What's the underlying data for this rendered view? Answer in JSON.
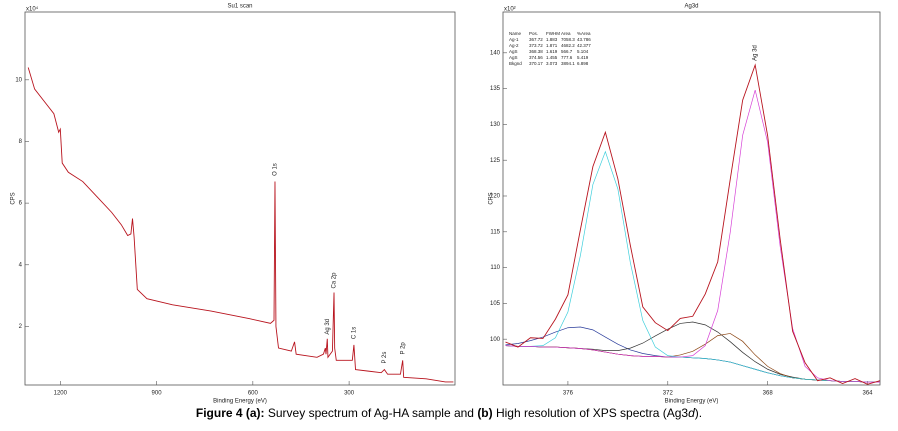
{
  "chart_data": [
    {
      "type": "line",
      "title": "Su1 scan",
      "x_label": "Binding Energy (eV)",
      "y_label": "CPS",
      "y_multiplier": "x10⁴",
      "x": [
        1300,
        1280,
        1250,
        1220,
        1205,
        1200,
        1194,
        1175,
        1130,
        1085,
        1040,
        1010,
        990,
        980,
        975,
        970,
        960,
        930,
        850,
        730,
        610,
        545,
        534,
        531,
        528,
        520,
        480,
        470,
        465,
        400,
        380,
        374,
        372,
        368,
        366,
        352,
        347,
        345,
        340,
        290,
        285,
        280,
        240,
        200,
        190,
        180,
        140,
        133,
        130,
        60,
        0,
        -25
      ],
      "series": [
        {
          "color": "#b8141e",
          "values": [
            10.4,
            9.7,
            9.3,
            8.9,
            8.3,
            8.4,
            7.3,
            7.0,
            6.7,
            6.2,
            5.7,
            5.3,
            4.95,
            5.0,
            5.5,
            4.9,
            3.2,
            2.9,
            2.7,
            2.5,
            2.25,
            2.1,
            2.2,
            6.7,
            2.0,
            1.3,
            1.2,
            1.5,
            1.1,
            1.0,
            1.1,
            1.3,
            1.1,
            1.6,
            1.0,
            1.2,
            3.1,
            1.3,
            0.9,
            0.9,
            1.4,
            0.6,
            0.55,
            0.5,
            0.6,
            0.45,
            0.45,
            0.9,
            0.35,
            0.3,
            0.2,
            0.2
          ]
        }
      ],
      "xlim": [
        1310,
        -30
      ],
      "xticks": [
        1200,
        900,
        600,
        300
      ],
      "ylim": [
        0.1,
        12.2
      ],
      "yticks": [
        2,
        4,
        6,
        8,
        10
      ],
      "annotations": [
        {
          "text": "O 1s",
          "x": 531
        },
        {
          "text": "Ag 3d",
          "x": 368
        },
        {
          "text": "Ca 2p",
          "x": 347
        },
        {
          "text": "C 1s",
          "x": 285
        },
        {
          "text": "P 2s",
          "x": 190
        },
        {
          "text": "P 2p",
          "x": 133
        }
      ]
    },
    {
      "type": "line",
      "title": "Ag3d",
      "x_label": "Binding Energy (eV)",
      "y_label": "CPS",
      "y_multiplier": "x10²",
      "x": [
        378.5,
        378,
        377.5,
        377,
        376.5,
        376,
        375.5,
        375,
        374.5,
        374,
        373.5,
        373,
        372.5,
        372,
        371.5,
        371,
        370.5,
        370,
        369.5,
        369,
        368.5,
        368,
        367.5,
        367,
        366.5,
        366,
        365.5,
        365,
        364.5,
        364,
        363.5
      ],
      "series": [
        {
          "color": "#8b5a2b",
          "values": [
            99.1,
            99.0,
            99.0,
            98.9,
            98.9,
            98.8,
            98.7,
            98.5,
            98.2,
            97.9,
            97.7,
            97.6,
            97.6,
            97.5,
            97.5,
            97.4,
            97.3,
            97.1,
            96.8,
            96.3,
            95.8,
            95.3,
            94.9,
            94.6,
            94.4,
            94.3,
            94.2,
            94.1,
            94.1,
            94.0,
            94.0
          ]
        },
        {
          "color": "#2a3c9b",
          "values": [
            99.2,
            99.4,
            99.8,
            100.3,
            101.0,
            101.6,
            101.7,
            101.3,
            100.3,
            99.3,
            98.5,
            98.0,
            97.7,
            97.5,
            97.5,
            97.4,
            97.3,
            97.1,
            96.8,
            96.3,
            95.8,
            95.3,
            94.9,
            94.6,
            94.4,
            94.3,
            94.2,
            94.1,
            94.1,
            94.0,
            94.0
          ]
        },
        {
          "color": "#333333",
          "values": [
            99.1,
            99.0,
            99.0,
            98.9,
            98.9,
            98.8,
            98.7,
            98.6,
            98.4,
            98.4,
            98.75,
            99.45,
            100.45,
            101.4,
            102.2,
            102.4,
            102.0,
            101.0,
            99.65,
            98.15,
            96.85,
            95.8,
            95.1,
            94.7,
            94.4,
            94.3,
            94.2,
            94.1,
            94.1,
            94.0,
            94.0
          ]
        },
        {
          "color": "#8b4513",
          "values": [
            99.1,
            99.0,
            99.0,
            98.9,
            98.9,
            98.8,
            98.7,
            98.5,
            98.2,
            97.9,
            97.7,
            97.6,
            97.6,
            97.5,
            97.8,
            98.3,
            99.3,
            100.5,
            100.8,
            99.7,
            97.8,
            96.2,
            95.2,
            94.6,
            94.4,
            94.3,
            94.2,
            94.1,
            94.1,
            94.0,
            94.0
          ]
        },
        {
          "color": "#3fcfdc",
          "values": [
            99.1,
            99.0,
            99.0,
            99.1,
            100.2,
            103.8,
            111.7,
            121.6,
            126.2,
            121.0,
            110.7,
            102.6,
            98.9,
            97.7,
            97.5,
            97.4,
            97.3,
            97.1,
            96.8,
            96.3,
            95.8,
            95.3,
            94.9,
            94.6,
            94.4,
            94.3,
            94.2,
            94.1,
            94.1,
            94.0,
            94.0
          ]
        },
        {
          "color": "#d63fd6",
          "values": [
            99.1,
            99.0,
            99.0,
            98.9,
            98.9,
            98.8,
            98.7,
            98.5,
            98.2,
            97.9,
            97.7,
            97.6,
            97.6,
            97.5,
            97.5,
            97.7,
            99.1,
            104.0,
            114.9,
            128.5,
            134.8,
            127.5,
            113.0,
            101.5,
            96.2,
            94.6,
            94.2,
            94.1,
            94.1,
            94.0,
            94.0
          ]
        },
        {
          "color": "#b8141e",
          "values": [
            99.6,
            98.9,
            100.2,
            100.1,
            102.8,
            106.2,
            115.3,
            124.1,
            128.9,
            122.4,
            113.1,
            104.5,
            102.3,
            101.2,
            102.9,
            103.2,
            106.3,
            110.8,
            122.3,
            133.4,
            138.3,
            128.4,
            114.0,
            101.1,
            96.7,
            94.2,
            94.6,
            93.8,
            94.5,
            93.7,
            94.2
          ]
        }
      ],
      "xlim": [
        378.6,
        363.5
      ],
      "xticks": [
        376,
        372,
        368,
        364
      ],
      "ylim": [
        93.6,
        145.7
      ],
      "yticks": [
        100,
        105,
        110,
        115,
        120,
        125,
        130,
        135,
        140
      ],
      "annotations": [
        {
          "text": "Ag 3d",
          "x": 368.5
        }
      ],
      "table": {
        "columns": [
          "Name",
          "Pos.",
          "FWHM",
          "Area",
          "%Area"
        ],
        "rows": [
          [
            "Ag-1",
            "367.72",
            "1.883",
            "7058.3",
            "43.786"
          ],
          [
            "Ag-2",
            "373.72",
            "1.871",
            "4682.2",
            "42.377"
          ],
          [
            "AgS",
            "368.38",
            "1.619",
            "566.7",
            "5.104"
          ],
          [
            "AgS",
            "374.56",
            "1.455",
            "777.6",
            "5.419"
          ],
          [
            "Bkgnd",
            "370.17",
            "3.073",
            "3894.1",
            "6.898"
          ]
        ]
      }
    }
  ],
  "caption": [
    "Figure 4 (a):",
    " Survey spectrum of Ag-HA sample and ",
    "(b)",
    " High resolution of XPS spectra (Ag3",
    "d",
    ")."
  ]
}
